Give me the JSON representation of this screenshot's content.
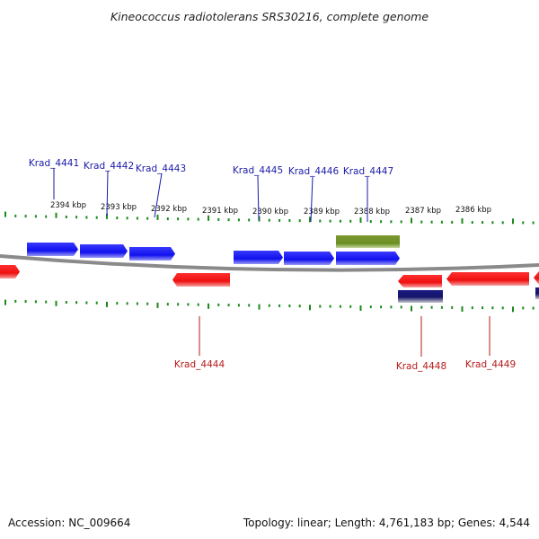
{
  "title": "Kineococcus radiotolerans SRS30216, complete genome",
  "footer": {
    "accession": "Accession: NC_009664",
    "summary": "Topology: linear; Length: 4,761,183 bp; Genes: 4,544"
  },
  "colors": {
    "forward_gene": "#1010ee",
    "reverse_gene": "#ee1010",
    "forward_label": "#1a1aa8",
    "reverse_label": "#b81818",
    "rna_feature": "#6b8e23",
    "reverse_small_feature": "#1a1a80",
    "tick": "#1a8a1a",
    "backbone": "#8a8a8a"
  },
  "scale_labels": [
    "2394 kbp",
    "2393 kbp",
    "2392 kbp",
    "2391 kbp",
    "2390 kbp",
    "2389 kbp",
    "2388 kbp",
    "2387 kbp",
    "2386 kbp"
  ],
  "forward_genes": [
    {
      "name": "Krad_4441",
      "labeled": true
    },
    {
      "name": "Krad_4442",
      "labeled": true
    },
    {
      "name": "Krad_4443",
      "labeled": true
    },
    {
      "name": "Krad_4445",
      "labeled": true
    },
    {
      "name": "Krad_4446",
      "labeled": true
    },
    {
      "name": "Krad_4447",
      "labeled": true
    }
  ],
  "reverse_genes": [
    {
      "name": "",
      "labeled": false
    },
    {
      "name": "Krad_4444",
      "labeled": true
    },
    {
      "name": "Krad_4448",
      "labeled": true
    },
    {
      "name": "Krad_4449",
      "labeled": true
    },
    {
      "name": "",
      "labeled": false
    },
    {
      "name": "",
      "labeled": false
    }
  ]
}
